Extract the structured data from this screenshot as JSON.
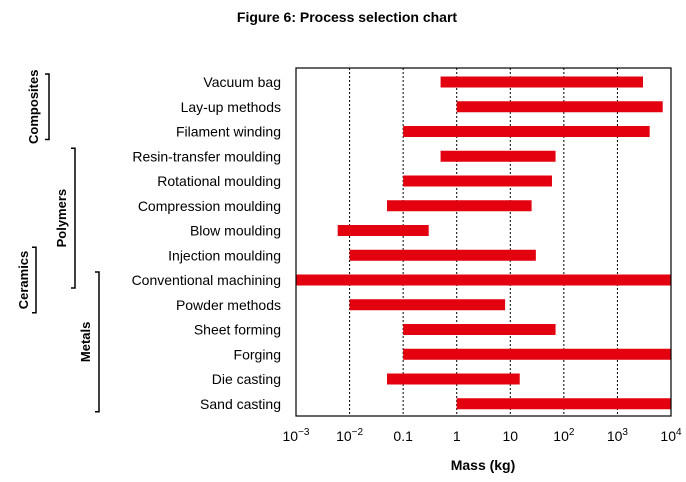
{
  "chart_data": {
    "type": "bar",
    "orientation": "horizontal-range",
    "title": "Figure 6: Process selection chart",
    "xlabel": "Mass (kg)",
    "xscale": "log",
    "xlim": [
      0.001,
      10000
    ],
    "x_ticks": [
      {
        "value": 0.001,
        "base": "10",
        "sup": "−3"
      },
      {
        "value": 0.01,
        "base": "10",
        "sup": "−2"
      },
      {
        "value": 0.1,
        "base": "0.1",
        "sup": ""
      },
      {
        "value": 1,
        "base": "1",
        "sup": ""
      },
      {
        "value": 10,
        "base": "10",
        "sup": ""
      },
      {
        "value": 100,
        "base": "10",
        "sup": "2"
      },
      {
        "value": 1000,
        "base": "10",
        "sup": "3"
      },
      {
        "value": 10000,
        "base": "10",
        "sup": "4"
      }
    ],
    "grid": "vertical dotted",
    "bar_color": "#e3000f",
    "categories": [
      "Vacuum bag",
      "Lay-up methods",
      "Filament winding",
      "Resin-transfer moulding",
      "Rotational moulding",
      "Compression moulding",
      "Blow moulding",
      "Injection moulding",
      "Conventional machining",
      "Powder methods",
      "Sheet forming",
      "Forging",
      "Die casting",
      "Sand casting"
    ],
    "ranges": [
      [
        0.5,
        3000
      ],
      [
        1,
        7000
      ],
      [
        0.1,
        4000
      ],
      [
        0.5,
        70
      ],
      [
        0.1,
        60
      ],
      [
        0.05,
        25
      ],
      [
        0.006,
        0.3
      ],
      [
        0.01,
        30
      ],
      [
        0.001,
        10000
      ],
      [
        0.01,
        8
      ],
      [
        0.1,
        70
      ],
      [
        0.1,
        10000
      ],
      [
        0.05,
        15
      ],
      [
        1,
        10000
      ]
    ],
    "groups": [
      {
        "label": "Composites",
        "from": 0,
        "to": 2
      },
      {
        "label": "Polymers",
        "from": 3,
        "to": 8
      },
      {
        "label": "Ceramics",
        "from": 7,
        "to": 9
      },
      {
        "label": "Metals",
        "from": 8,
        "to": 13
      }
    ]
  }
}
